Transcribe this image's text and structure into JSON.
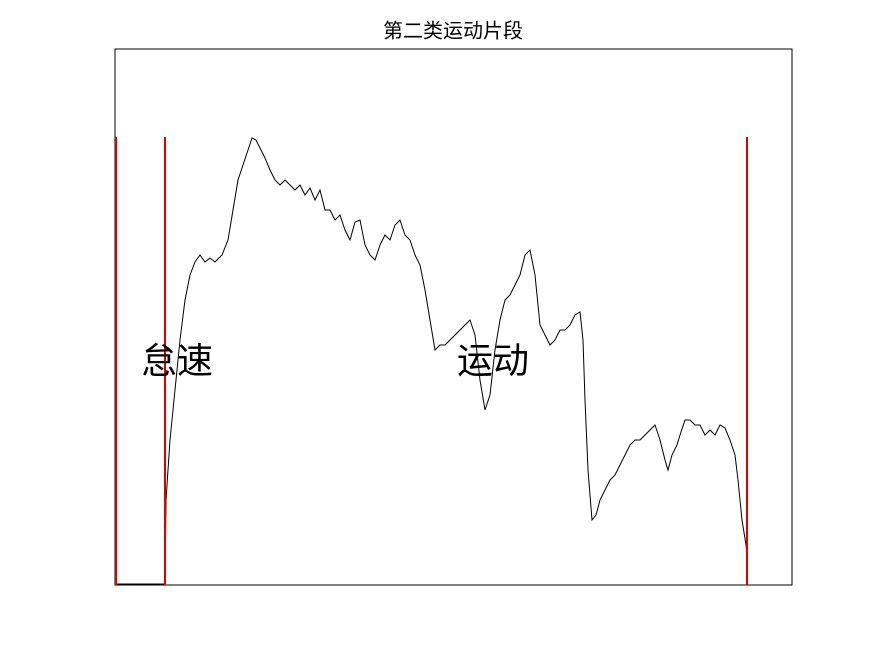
{
  "chart_data": {
    "type": "line",
    "title": "第二类运动片段",
    "annotations": [
      "怠速",
      "运动"
    ],
    "xlim": [
      0,
      677
    ],
    "ylim": [
      0,
      536
    ],
    "x": [
      0,
      45,
      50,
      51,
      55,
      60,
      65,
      70,
      75,
      80,
      85,
      90,
      95,
      100,
      107,
      113,
      118,
      123,
      128,
      133,
      137,
      141,
      145,
      150,
      155,
      160,
      165,
      170,
      175,
      180,
      185,
      190,
      195,
      200,
      205,
      210,
      215,
      220,
      225,
      230,
      235,
      240,
      245,
      250,
      255,
      260,
      265,
      270,
      275,
      280,
      285,
      290,
      295,
      300,
      305,
      310,
      315,
      320,
      325,
      330,
      335,
      340,
      345,
      350,
      355,
      360,
      365,
      370,
      375,
      380,
      385,
      390,
      395,
      400,
      405,
      410,
      415,
      420,
      425,
      430,
      435,
      440,
      445,
      450,
      455,
      460,
      465,
      468,
      470,
      473,
      477,
      481,
      485,
      490,
      495,
      500,
      505,
      510,
      515,
      520,
      525,
      530,
      535,
      540,
      545,
      550,
      553,
      557,
      562,
      565,
      570,
      575,
      580,
      585,
      590,
      595,
      600,
      605,
      610,
      615,
      620,
      623,
      627,
      631,
      632
    ],
    "series": [
      {
        "color": "#000000",
        "values": [
          1,
          1,
          1,
          85,
          145,
          195,
          245,
          285,
          310,
          323,
          330,
          323,
          327,
          323,
          330,
          345,
          375,
          405,
          420,
          435,
          447,
          445,
          437,
          427,
          415,
          405,
          400,
          405,
          400,
          395,
          400,
          390,
          397,
          385,
          395,
          375,
          375,
          365,
          370,
          355,
          345,
          363,
          365,
          340,
          330,
          325,
          340,
          350,
          345,
          360,
          365,
          350,
          345,
          330,
          320,
          295,
          265,
          235,
          240,
          240,
          245,
          250,
          255,
          260,
          265,
          250,
          205,
          175,
          190,
          235,
          265,
          285,
          290,
          300,
          310,
          330,
          335,
          310,
          260,
          250,
          240,
          245,
          255,
          255,
          260,
          270,
          273,
          245,
          185,
          115,
          65,
          70,
          85,
          95,
          105,
          110,
          120,
          130,
          140,
          145,
          145,
          150,
          155,
          160,
          145,
          125,
          115,
          130,
          140,
          150,
          165,
          165,
          160,
          160,
          150,
          155,
          150,
          160,
          157,
          145,
          130,
          105,
          65,
          40,
          30
        ]
      }
    ],
    "vlines": [
      1,
      50,
      632
    ],
    "vline_top": 448,
    "vline_color": "#e00000"
  }
}
